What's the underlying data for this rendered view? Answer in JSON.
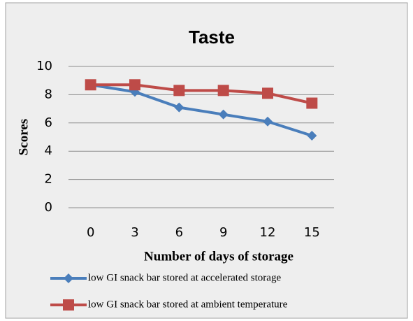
{
  "chart_data": {
    "type": "line",
    "title": "Taste",
    "x_label": "Number of days of storage",
    "y_label": "Scores",
    "categories": [
      "0",
      "3",
      "6",
      "9",
      "12",
      "15"
    ],
    "series": [
      {
        "name": "low GI snack bar stored at accelerated storage",
        "color": "#4a7ebb",
        "marker": "diamond",
        "values": [
          8.7,
          8.2,
          7.1,
          6.6,
          6.1,
          5.1
        ]
      },
      {
        "name": "low GI snack bar stored at ambient temperature",
        "color": "#be4b48",
        "marker": "square",
        "values": [
          8.7,
          8.7,
          8.3,
          8.3,
          8.1,
          7.4
        ]
      }
    ],
    "ylim": [
      0,
      10
    ],
    "yticks": [
      0,
      2,
      4,
      6,
      8,
      10
    ],
    "grid": true,
    "legend": "bottom"
  }
}
